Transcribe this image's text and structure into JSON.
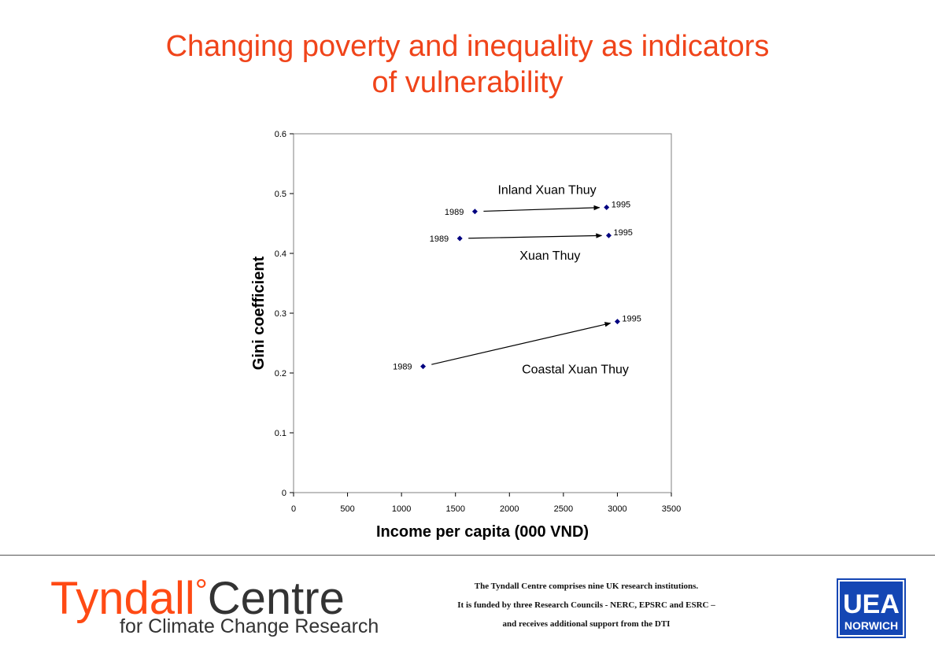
{
  "slide": {
    "title_line1": "Changing poverty and inequality as indicators",
    "title_line2": "of vulnerability"
  },
  "footer": {
    "logo_name": "Tyndall",
    "logo_degree": "°",
    "logo_name2": "Centre",
    "logo_subtitle": "for Climate Change Research",
    "line1": "The Tyndall Centre comprises nine UK research institutions.",
    "line2": "It is funded by three Research Councils - NERC, EPSRC and ESRC –",
    "line3": "and receives additional support from the DTI",
    "uea_top": "UEA",
    "uea_bottom": "NORWICH",
    "colors": {
      "title": "#f0441a",
      "tyndall_orange": "#ff4a14",
      "uea_blue": "#1446b4"
    }
  },
  "chart_data": {
    "type": "scatter",
    "xlabel": "Income per capita (000 VND)",
    "ylabel": "Gini coefficient",
    "xlim": [
      0,
      3500
    ],
    "ylim": [
      0,
      0.6
    ],
    "xticks": [
      0,
      500,
      1000,
      1500,
      2000,
      2500,
      3000,
      3500
    ],
    "yticks": [
      0,
      0.1,
      0.2,
      0.3,
      0.4,
      0.5,
      0.6
    ],
    "grid": false,
    "marker_color": "#000080",
    "series": [
      {
        "name": "Inland Xuan Thuy",
        "points": [
          {
            "label": "1989",
            "x": 1680,
            "y": 0.47
          },
          {
            "label": "1995",
            "x": 2900,
            "y": 0.477
          }
        ]
      },
      {
        "name": "Xuan Thuy",
        "points": [
          {
            "label": "1989",
            "x": 1540,
            "y": 0.425
          },
          {
            "label": "1995",
            "x": 2920,
            "y": 0.43
          }
        ]
      },
      {
        "name": "Coastal Xuan Thuy",
        "points": [
          {
            "label": "1989",
            "x": 1200,
            "y": 0.211
          },
          {
            "label": "1995",
            "x": 3000,
            "y": 0.286
          }
        ]
      }
    ]
  }
}
